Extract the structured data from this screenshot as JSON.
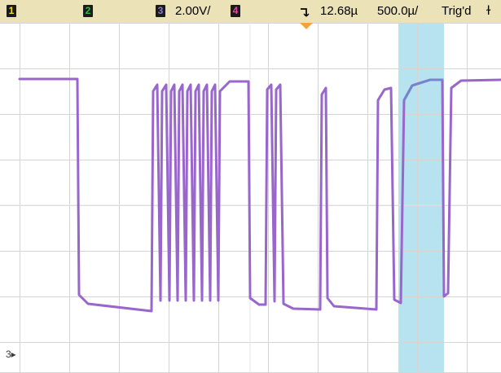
{
  "status_bar": {
    "channels": [
      {
        "label": "1",
        "color": "#f4da2a"
      },
      {
        "label": "2",
        "color": "#22c244"
      },
      {
        "label": "3",
        "color": "#8c7ad8"
      },
      {
        "label": "4",
        "color": "#e04aa0"
      }
    ],
    "volts_per_div": "2.00V/",
    "trigger_level": "12.68µ",
    "time_per_div": "500.0µ/",
    "trigger_status": "Trig'd",
    "trigger_edge_icon": "falling-edge-icon",
    "trigger_slope_icon": "trigger-slope-icon"
  },
  "screen": {
    "grid_divisions": {
      "horizontal": 10,
      "vertical": 8
    },
    "trace_color": "#9966cc",
    "highlight_color": "#b6e3ef",
    "channel_marker": "3▸"
  }
}
